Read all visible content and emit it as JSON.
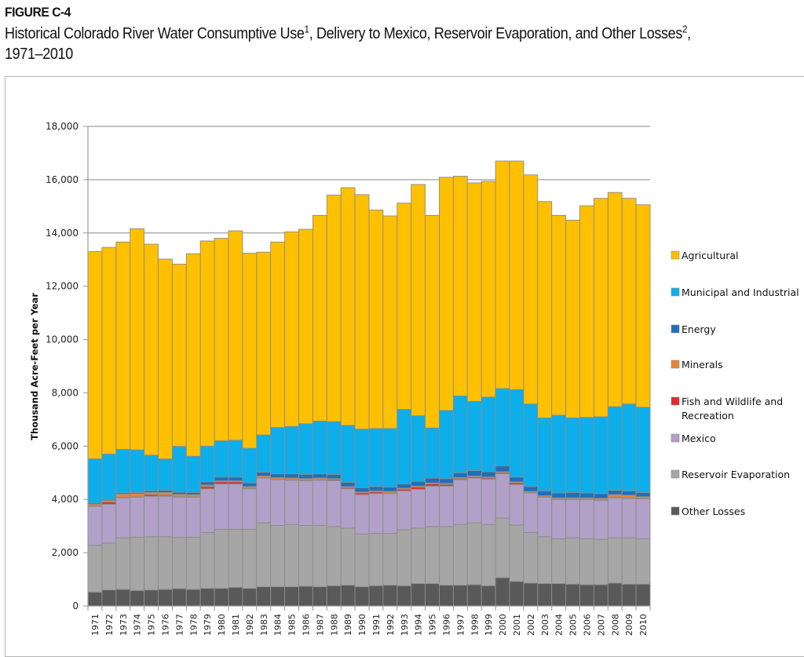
{
  "figure": {
    "label": "FIGURE C-4",
    "title_part1": "Historical Colorado River Water Consumptive Use",
    "title_sup1": "1",
    "title_part2": ", Delivery to Mexico, Reservoir Evaporation, and Other Losses",
    "title_sup2": "2",
    "title_part3": ",",
    "title_line2": "1971–2010"
  },
  "chart_data": {
    "type": "bar",
    "stacked": true,
    "title": "Historical Colorado River Water Consumptive Use, Delivery to Mexico, Reservoir Evaporation, and Other Losses, 1971–2010",
    "xlabel": "",
    "ylabel": "Thousand Acre-Feet per Year",
    "ylim": [
      0,
      18000
    ],
    "yticks": [
      0,
      2000,
      4000,
      6000,
      8000,
      10000,
      12000,
      14000,
      16000,
      18000
    ],
    "ytick_labels": [
      "0",
      "2,000",
      "4,000",
      "6,000",
      "8,000",
      "10,000",
      "12,000",
      "14,000",
      "16,000",
      "18,000"
    ],
    "grid": "horizontal",
    "legend_position": "right",
    "categories": [
      "1971",
      "1972",
      "1973",
      "1974",
      "1975",
      "1976",
      "1977",
      "1978",
      "1979",
      "1980",
      "1981",
      "1982",
      "1983",
      "1984",
      "1985",
      "1986",
      "1987",
      "1988",
      "1989",
      "1990",
      "1991",
      "1992",
      "1993",
      "1994",
      "1995",
      "1996",
      "1997",
      "1998",
      "1999",
      "2000",
      "2001",
      "2002",
      "2003",
      "2004",
      "2005",
      "2006",
      "2007",
      "2008",
      "2009",
      "2010"
    ],
    "series": [
      {
        "name": "Other Losses",
        "color": "#595959",
        "values": [
          520,
          600,
          620,
          580,
          600,
          620,
          650,
          620,
          660,
          660,
          700,
          660,
          720,
          720,
          720,
          740,
          720,
          760,
          780,
          720,
          760,
          780,
          760,
          840,
          840,
          780,
          780,
          800,
          760,
          1060,
          920,
          860,
          840,
          840,
          820,
          800,
          800,
          860,
          820,
          820
        ]
      },
      {
        "name": "Reservoir Evaporation",
        "color": "#a6a6a6",
        "values": [
          1760,
          1760,
          1940,
          2000,
          2000,
          1980,
          1920,
          1960,
          2100,
          2220,
          2180,
          2220,
          2400,
          2300,
          2340,
          2280,
          2300,
          2220,
          2140,
          1980,
          1960,
          1940,
          2100,
          2080,
          2140,
          2200,
          2280,
          2320,
          2300,
          2240,
          2120,
          1900,
          1760,
          1680,
          1740,
          1720,
          1700,
          1700,
          1740,
          1700
        ]
      },
      {
        "name": "Mexico",
        "color": "#b1a0c7",
        "values": [
          1460,
          1460,
          1500,
          1500,
          1520,
          1520,
          1520,
          1500,
          1640,
          1700,
          1700,
          1520,
          1680,
          1720,
          1660,
          1680,
          1700,
          1720,
          1480,
          1480,
          1500,
          1500,
          1460,
          1460,
          1520,
          1520,
          1680,
          1680,
          1700,
          1660,
          1520,
          1480,
          1480,
          1480,
          1440,
          1480,
          1460,
          1500,
          1480,
          1500
        ]
      },
      {
        "name": "Fish and Wildlife and Recreation",
        "color": "#e32a2a",
        "values": [
          20,
          80,
          20,
          20,
          60,
          40,
          20,
          20,
          80,
          80,
          80,
          20,
          20,
          20,
          20,
          20,
          20,
          40,
          40,
          60,
          60,
          20,
          60,
          80,
          80,
          60,
          40,
          40,
          40,
          40,
          60,
          20,
          20,
          20,
          20,
          20,
          20,
          20,
          20,
          20
        ]
      },
      {
        "name": "Minerals",
        "color": "#e8853a",
        "values": [
          60,
          60,
          120,
          120,
          80,
          100,
          80,
          80,
          60,
          40,
          40,
          60,
          60,
          60,
          60,
          60,
          60,
          40,
          40,
          40,
          40,
          60,
          40,
          40,
          40,
          40,
          40,
          40,
          40,
          40,
          40,
          40,
          40,
          40,
          40,
          40,
          60,
          100,
          100,
          60
        ]
      },
      {
        "name": "Energy",
        "color": "#1f6fba",
        "values": [
          40,
          40,
          40,
          40,
          60,
          80,
          80,
          80,
          120,
          140,
          140,
          140,
          140,
          140,
          160,
          160,
          160,
          160,
          160,
          160,
          160,
          160,
          160,
          180,
          180,
          180,
          180,
          200,
          200,
          220,
          180,
          180,
          180,
          180,
          200,
          180,
          180,
          160,
          160,
          160
        ]
      },
      {
        "name": "Municipal and Industrial",
        "color": "#0daeea",
        "values": [
          1660,
          1700,
          1640,
          1600,
          1340,
          1180,
          1720,
          1360,
          1340,
          1360,
          1380,
          1300,
          1400,
          1740,
          1780,
          1900,
          1980,
          1980,
          2140,
          2200,
          2180,
          2200,
          2800,
          2460,
          1880,
          2560,
          2880,
          2600,
          2800,
          2900,
          3280,
          3100,
          2740,
          2920,
          2800,
          2840,
          2880,
          3140,
          3260,
          3200
        ]
      },
      {
        "name": "Agricultural",
        "color": "#ffc000",
        "values": [
          7780,
          7760,
          7780,
          8300,
          7920,
          7500,
          6840,
          7600,
          7700,
          7600,
          7860,
          7320,
          6860,
          6960,
          7300,
          7300,
          7720,
          8500,
          8920,
          8800,
          8200,
          7980,
          7740,
          8680,
          7980,
          8750,
          8250,
          8200,
          8100,
          8540,
          8580,
          8600,
          8120,
          7500,
          7420,
          7940,
          8200,
          8040,
          7720,
          7600
        ]
      }
    ]
  },
  "legend": {
    "items": [
      {
        "label": "Agricultural",
        "color": "#ffc000"
      },
      {
        "label": "Municipal and Industrial",
        "color": "#0daeea"
      },
      {
        "label": "Energy",
        "color": "#1f6fba"
      },
      {
        "label": "Minerals",
        "color": "#e8853a"
      },
      {
        "label": "Fish and Wildlife and",
        "label2": "Recreation",
        "color": "#e32a2a"
      },
      {
        "label": "Mexico",
        "color": "#b1a0c7"
      },
      {
        "label": "Reservoir Evaporation",
        "color": "#a6a6a6"
      },
      {
        "label": "Other Losses",
        "color": "#595959"
      }
    ]
  }
}
